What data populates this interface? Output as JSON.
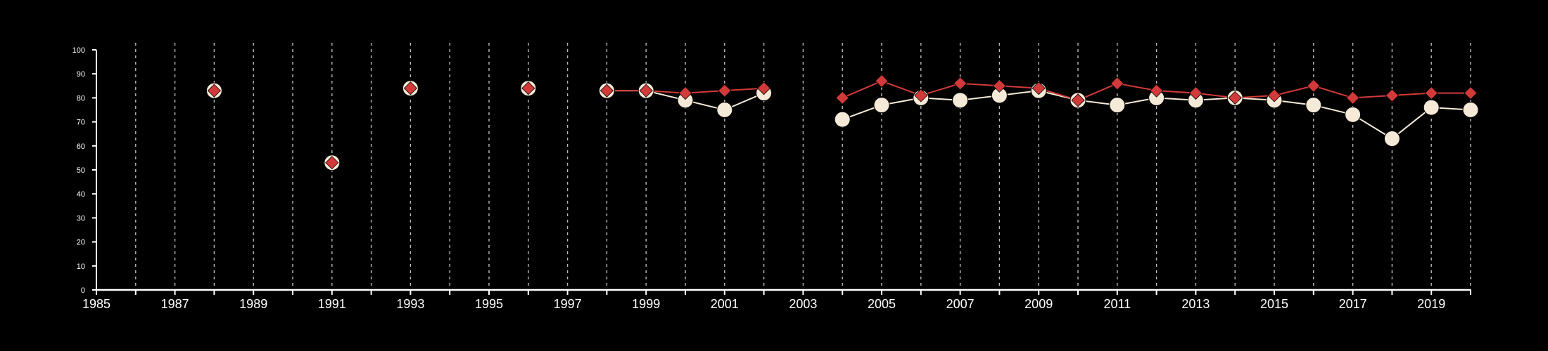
{
  "chart_data": {
    "type": "line",
    "title": "",
    "xlabel": "",
    "ylabel": "",
    "xlim": [
      1985,
      2020
    ],
    "ylim": [
      0,
      100
    ],
    "x_ticks_labeled": [
      "1985",
      "1987",
      "1989",
      "1991",
      "1993",
      "1995",
      "1997",
      "1999",
      "2001",
      "2003",
      "2005",
      "2007",
      "2009",
      "2011",
      "2013",
      "2015",
      "2017",
      "2019"
    ],
    "y_ticks": [
      "0",
      "10",
      "20",
      "30",
      "40",
      "50",
      "60",
      "70",
      "80",
      "90",
      "100"
    ],
    "grid": "vertical dashed lines at each year",
    "legend": "none",
    "colors": {
      "background": "#000000",
      "axis": "#ffffff",
      "grid": "#bbbbbb",
      "series_a": "#f5ead8",
      "series_b": "#d23a3a"
    },
    "series": [
      {
        "marker": "circle",
        "color": "#f5ead8",
        "points": [
          [
            1988,
            83
          ],
          [
            1991,
            53
          ],
          [
            1993,
            84
          ],
          [
            1996,
            84
          ],
          [
            1998,
            83
          ],
          [
            1999,
            83
          ],
          [
            2000,
            79
          ],
          [
            2001,
            75
          ],
          [
            2002,
            82
          ],
          [
            2004,
            71
          ],
          [
            2005,
            77
          ],
          [
            2006,
            80
          ],
          [
            2007,
            79
          ],
          [
            2008,
            81
          ],
          [
            2009,
            83
          ],
          [
            2010,
            79
          ],
          [
            2011,
            77
          ],
          [
            2012,
            80
          ],
          [
            2013,
            79
          ],
          [
            2014,
            80
          ],
          [
            2015,
            79
          ],
          [
            2016,
            77
          ],
          [
            2017,
            73
          ],
          [
            2018,
            63
          ],
          [
            2019,
            76
          ],
          [
            2020,
            75
          ]
        ]
      },
      {
        "marker": "diamond",
        "color": "#d23a3a",
        "points": [
          [
            1988,
            83
          ],
          [
            1991,
            53
          ],
          [
            1993,
            84
          ],
          [
            1996,
            84
          ],
          [
            1998,
            83
          ],
          [
            1999,
            83
          ],
          [
            2000,
            82
          ],
          [
            2001,
            83
          ],
          [
            2002,
            84
          ],
          [
            2004,
            80
          ],
          [
            2005,
            87
          ],
          [
            2006,
            81
          ],
          [
            2007,
            86
          ],
          [
            2008,
            85
          ],
          [
            2009,
            84
          ],
          [
            2010,
            79
          ],
          [
            2011,
            86
          ],
          [
            2012,
            83
          ],
          [
            2013,
            82
          ],
          [
            2014,
            80
          ],
          [
            2015,
            81
          ],
          [
            2016,
            85
          ],
          [
            2017,
            80
          ],
          [
            2018,
            81
          ],
          [
            2019,
            82
          ],
          [
            2020,
            82
          ]
        ]
      }
    ]
  }
}
